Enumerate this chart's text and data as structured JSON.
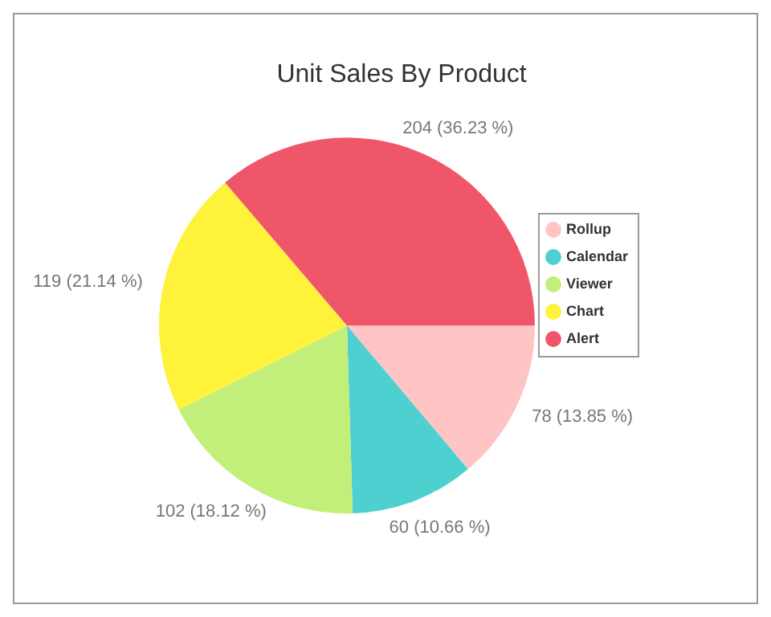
{
  "chart_data": {
    "type": "pie",
    "title": "Unit Sales By Product",
    "categories": [
      "Rollup",
      "Calendar",
      "Viewer",
      "Chart",
      "Alert"
    ],
    "values": [
      78,
      60,
      102,
      119,
      204
    ],
    "colors": [
      "#ffc4c4",
      "#4fd0d0",
      "#c2ee7a",
      "#fff23a",
      "#f0566a"
    ],
    "value_labels": [
      "78 (13.85 %)",
      "60 (10.66 %)",
      "102 (18.12 %)",
      "119 (21.14 %)",
      "204 (36.23 %)"
    ],
    "legend": "right"
  }
}
